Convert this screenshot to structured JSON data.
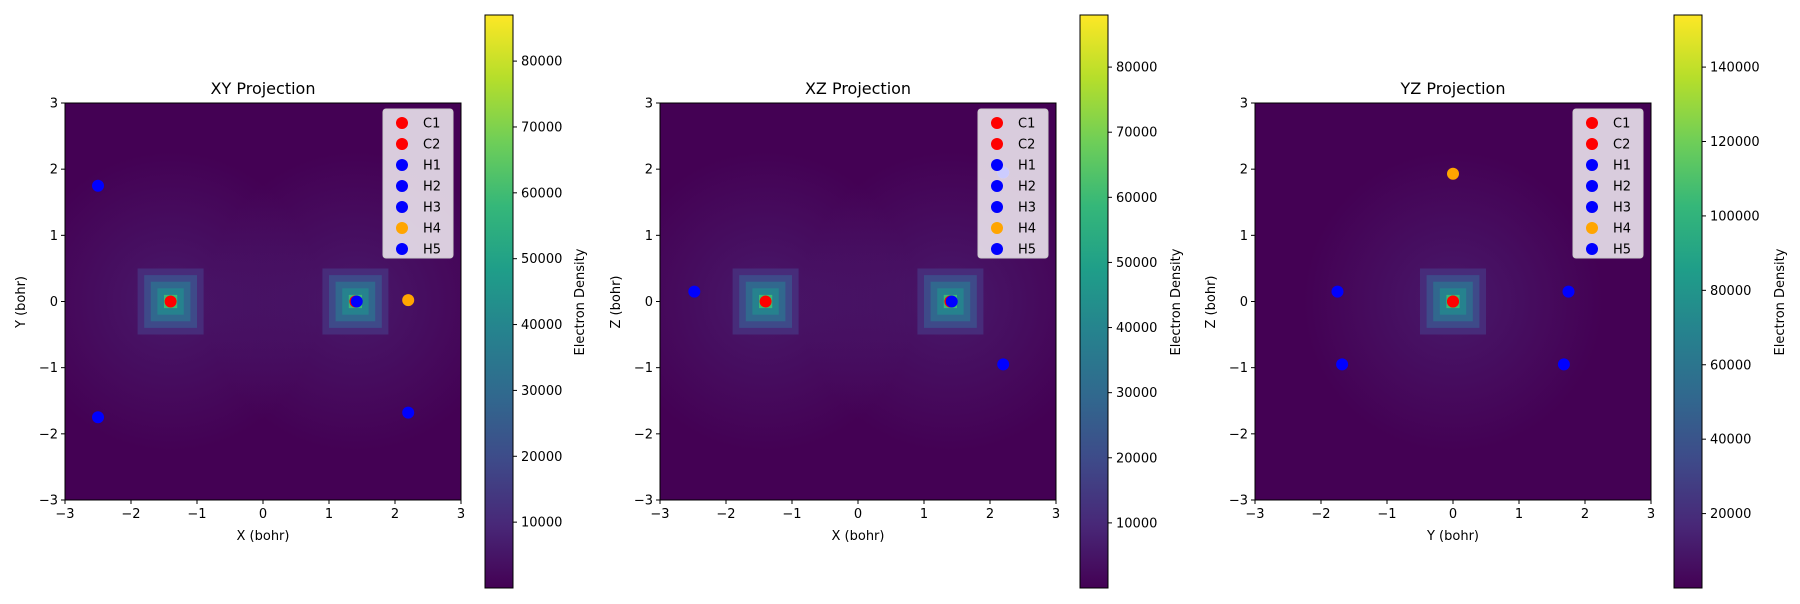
{
  "colormap": "viridis",
  "chart_data": [
    {
      "type": "heatmap",
      "title": "XY Projection",
      "xlabel": "X (bohr)",
      "ylabel": "Y (bohr)",
      "xlim": [
        -3,
        3
      ],
      "ylim": [
        -3,
        3
      ],
      "xticks": [
        "−3",
        "−2",
        "−1",
        "0",
        "1",
        "2",
        "3"
      ],
      "yticks": [
        "−3",
        "−2",
        "−1",
        "0",
        "1",
        "2",
        "3"
      ],
      "colorbar": {
        "label": "Electron Density",
        "range": [
          0,
          87000
        ],
        "ticks": [
          {
            "value": 10000,
            "label": "10000"
          },
          {
            "value": 20000,
            "label": "20000"
          },
          {
            "value": 30000,
            "label": "30000"
          },
          {
            "value": 40000,
            "label": "40000"
          },
          {
            "value": 50000,
            "label": "50000"
          },
          {
            "value": 60000,
            "label": "60000"
          },
          {
            "value": 70000,
            "label": "70000"
          },
          {
            "value": 80000,
            "label": "80000"
          }
        ]
      },
      "density_peaks": [
        [
          -1.4,
          0
        ],
        [
          1.4,
          0
        ]
      ],
      "atoms": [
        {
          "name": "C1",
          "x": -1.4,
          "y": 0.0,
          "color": "#ff0000"
        },
        {
          "name": "C2",
          "x": 1.4,
          "y": 0.0,
          "color": "#ff0000"
        },
        {
          "name": "H1",
          "x": -2.5,
          "y": 1.75,
          "color": "#0000ff"
        },
        {
          "name": "H2",
          "x": -2.5,
          "y": -1.75,
          "color": "#0000ff"
        },
        {
          "name": "H3",
          "x": 2.2,
          "y": -1.68,
          "color": "#0000ff"
        },
        {
          "name": "H4",
          "x": 2.2,
          "y": 0.02,
          "color": "#ffa500"
        },
        {
          "name": "H5",
          "x": 1.42,
          "y": 0.0,
          "color": "#0000ff"
        }
      ],
      "legend_position": "upper right"
    },
    {
      "type": "heatmap",
      "title": "XZ Projection",
      "xlabel": "X (bohr)",
      "ylabel": "Z (bohr)",
      "xlim": [
        -3,
        3
      ],
      "ylim": [
        -3,
        3
      ],
      "xticks": [
        "−3",
        "−2",
        "−1",
        "0",
        "1",
        "2",
        "3"
      ],
      "yticks": [
        "−3",
        "−2",
        "−1",
        "0",
        "1",
        "2",
        "3"
      ],
      "colorbar": {
        "label": "Electron Density",
        "range": [
          0,
          88000
        ],
        "ticks": [
          {
            "value": 10000,
            "label": "10000"
          },
          {
            "value": 20000,
            "label": "20000"
          },
          {
            "value": 30000,
            "label": "30000"
          },
          {
            "value": 40000,
            "label": "40000"
          },
          {
            "value": 50000,
            "label": "50000"
          },
          {
            "value": 60000,
            "label": "60000"
          },
          {
            "value": 70000,
            "label": "70000"
          },
          {
            "value": 80000,
            "label": "80000"
          }
        ]
      },
      "density_peaks": [
        [
          -1.4,
          0
        ],
        [
          1.4,
          0
        ]
      ],
      "atoms": [
        {
          "name": "C1",
          "x": -1.4,
          "y": 0.0,
          "color": "#ff0000"
        },
        {
          "name": "C2",
          "x": 1.4,
          "y": 0.0,
          "color": "#ff0000"
        },
        {
          "name": "H1",
          "x": -2.48,
          "y": 0.15,
          "color": "#0000ff"
        },
        {
          "name": "H2",
          "x": 1.42,
          "y": 0.0,
          "color": "#0000ff"
        },
        {
          "name": "H3",
          "x": 2.2,
          "y": -0.95,
          "color": "#0000ff"
        },
        {
          "name": "H4",
          "x": 2.2,
          "y": 1.95,
          "color": "#ffa500"
        },
        {
          "name": "H5",
          "x": 2.2,
          "y": 1.95,
          "color": "#0000ff"
        }
      ],
      "legend_position": "upper right"
    },
    {
      "type": "heatmap",
      "title": "YZ Projection",
      "xlabel": "Y (bohr)",
      "ylabel": "Z (bohr)",
      "xlim": [
        -3,
        3
      ],
      "ylim": [
        -3,
        3
      ],
      "xticks": [
        "−3",
        "−2",
        "−1",
        "0",
        "1",
        "2",
        "3"
      ],
      "yticks": [
        "−3",
        "−2",
        "−1",
        "0",
        "1",
        "2",
        "3"
      ],
      "colorbar": {
        "label": "Electron Density",
        "range": [
          0,
          154000
        ],
        "ticks": [
          {
            "value": 20000,
            "label": "20000"
          },
          {
            "value": 40000,
            "label": "40000"
          },
          {
            "value": 60000,
            "label": "60000"
          },
          {
            "value": 80000,
            "label": "80000"
          },
          {
            "value": 100000,
            "label": "100000"
          },
          {
            "value": 120000,
            "label": "120000"
          },
          {
            "value": 140000,
            "label": "140000"
          }
        ]
      },
      "density_peaks": [
        [
          0,
          0
        ]
      ],
      "atoms": [
        {
          "name": "C1",
          "x": 0.0,
          "y": 0.0,
          "color": "#ff0000"
        },
        {
          "name": "C2",
          "x": 0.0,
          "y": 0.0,
          "color": "#ff0000"
        },
        {
          "name": "H1",
          "x": -1.75,
          "y": 0.15,
          "color": "#0000ff"
        },
        {
          "name": "H2",
          "x": 1.75,
          "y": 0.15,
          "color": "#0000ff"
        },
        {
          "name": "H3",
          "x": -1.68,
          "y": -0.95,
          "color": "#0000ff"
        },
        {
          "name": "H4",
          "x": 0.0,
          "y": 1.93,
          "color": "#ffa500"
        },
        {
          "name": "H5",
          "x": 1.68,
          "y": -0.95,
          "color": "#0000ff"
        }
      ],
      "legend_position": "upper right"
    }
  ]
}
